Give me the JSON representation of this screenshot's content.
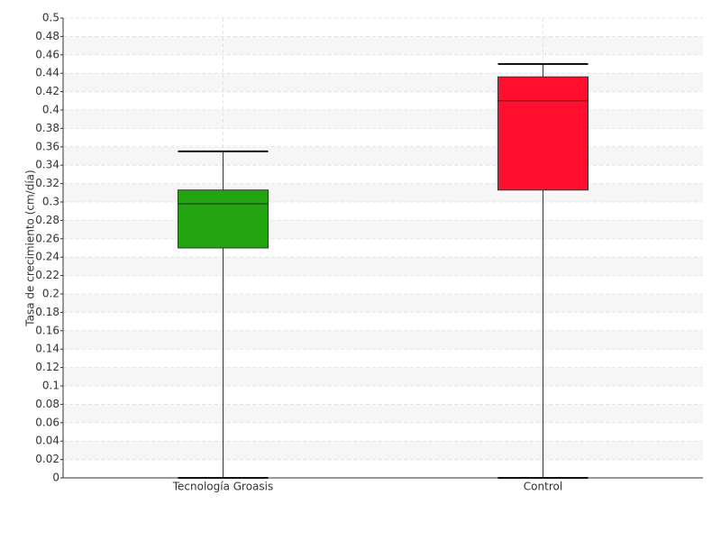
{
  "chart_data": {
    "type": "box",
    "y_label": "Tasa de crecimiento (cm/día)",
    "categories": [
      "Tecnología Groasis",
      "Control"
    ],
    "boxes": [
      {
        "min": 0,
        "q1": 0.25,
        "median": 0.298,
        "q3": 0.313,
        "max": 0.355,
        "color": "#22a510"
      },
      {
        "min": 0,
        "q1": 0.313,
        "median": 0.41,
        "q3": 0.436,
        "max": 0.45,
        "color": "#ff0f2d"
      }
    ],
    "ylim": [
      0,
      0.5
    ],
    "yticks": [
      0,
      0.02,
      0.04,
      0.06,
      0.08,
      0.1,
      0.12,
      0.14,
      0.16,
      0.18,
      0.2,
      0.22,
      0.24,
      0.26,
      0.28,
      0.3,
      0.32,
      0.34,
      0.36,
      0.38,
      0.4,
      0.42,
      0.44,
      0.46,
      0.48,
      0.5
    ],
    "grid": true
  }
}
